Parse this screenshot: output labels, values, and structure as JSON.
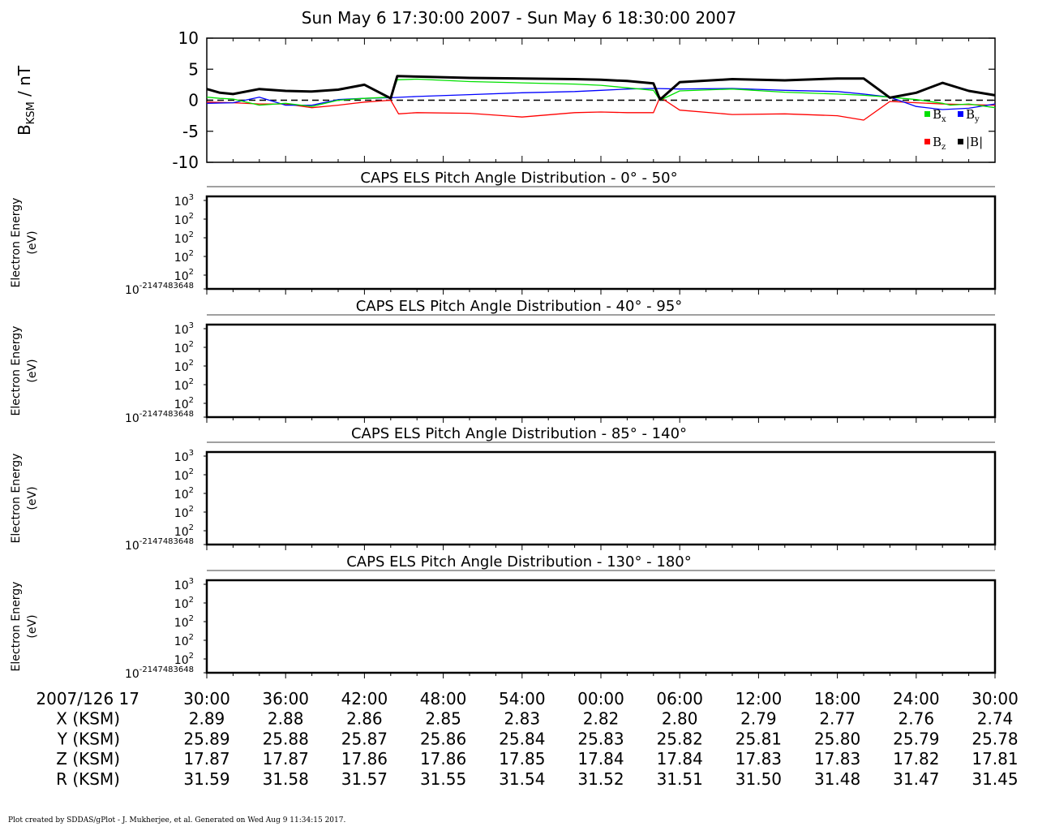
{
  "title": "Sun May 6 17:30:00 2007 - Sun May 6 18:30:00 2007",
  "footer": "Plot created by SDDAS/gPlot - J. Mukherjee, et al.  Generated on Wed Aug 9 11:34:15 2017.",
  "colors": {
    "Bx": "#00e000",
    "By": "#0000ff",
    "Bz": "#ff0000",
    "B": "#000000"
  },
  "chart_data": [
    {
      "type": "line",
      "ylabel": "B_KSM / nT",
      "ylim": [
        -10,
        10
      ],
      "yticks": [
        10,
        5,
        0,
        -5,
        -10
      ],
      "xlim_minutes": [
        0,
        60
      ],
      "zero_line": "dashed",
      "legend": [
        {
          "series": "Bx",
          "base": "B",
          "sub": "x"
        },
        {
          "series": "By",
          "base": "B",
          "sub": "y"
        },
        {
          "series": "Bz",
          "base": "B",
          "sub": "z"
        },
        {
          "series": "B",
          "label": "|B|"
        }
      ],
      "legend_placement": "right",
      "series": [
        {
          "name": "Bx",
          "x": [
            0,
            1,
            2,
            4,
            6,
            8,
            10,
            12,
            14,
            14.5,
            16,
            20,
            24,
            28,
            30,
            32,
            34,
            34.5,
            36,
            40,
            44,
            48,
            50,
            52,
            54,
            56,
            56.6,
            58,
            60
          ],
          "y": [
            0.5,
            0.3,
            0.2,
            -0.8,
            -0.5,
            -1.0,
            0.0,
            0.3,
            0.5,
            3.3,
            3.4,
            3.0,
            2.8,
            2.6,
            2.4,
            2.0,
            1.6,
            0.0,
            1.5,
            1.8,
            1.3,
            1.0,
            0.8,
            0.5,
            0.1,
            -0.5,
            -0.8,
            -0.6,
            -1.2
          ]
        },
        {
          "name": "By",
          "x": [
            0,
            2,
            4,
            6,
            8,
            10,
            12,
            14,
            16,
            20,
            24,
            28,
            30,
            32,
            34,
            36,
            40,
            44,
            48,
            50,
            52,
            54,
            56,
            58,
            60
          ],
          "y": [
            -0.5,
            -0.4,
            0.5,
            -0.8,
            -0.8,
            0.1,
            0.3,
            0.4,
            0.6,
            0.9,
            1.2,
            1.4,
            1.6,
            1.8,
            1.9,
            1.8,
            1.9,
            1.6,
            1.4,
            1.0,
            0.5,
            -1.0,
            -1.5,
            -1.3,
            -0.6
          ]
        },
        {
          "name": "Bz",
          "x": [
            0,
            2,
            4,
            6,
            8,
            10,
            12,
            14,
            14.6,
            16,
            20,
            24,
            28,
            30,
            32,
            34,
            34.5,
            36,
            40,
            44,
            48,
            50,
            52,
            54,
            56,
            58,
            60
          ],
          "y": [
            -0.3,
            -0.4,
            -0.6,
            -0.6,
            -1.2,
            -0.8,
            -0.3,
            0.0,
            -2.2,
            -2.0,
            -2.1,
            -2.7,
            -2.0,
            -1.9,
            -2.0,
            -2.0,
            0.5,
            -1.6,
            -2.3,
            -2.2,
            -2.5,
            -3.2,
            -0.2,
            -0.4,
            -0.6,
            -0.7,
            -0.8
          ]
        },
        {
          "name": "B",
          "x": [
            0,
            1,
            2,
            4,
            6,
            8,
            10,
            12,
            14,
            14.5,
            16,
            20,
            24,
            28,
            30,
            32,
            34,
            34.5,
            36,
            40,
            44,
            48,
            50,
            52,
            54,
            56,
            58,
            60
          ],
          "y": [
            1.8,
            1.2,
            1.0,
            1.8,
            1.5,
            1.4,
            1.7,
            2.5,
            0.3,
            3.9,
            3.8,
            3.6,
            3.5,
            3.4,
            3.3,
            3.1,
            2.7,
            0.1,
            2.9,
            3.4,
            3.2,
            3.5,
            3.5,
            0.4,
            1.2,
            2.8,
            1.5,
            0.8
          ]
        }
      ]
    },
    {
      "type": "heatmap",
      "title": "CAPS ELS Pitch Angle Distribution - 0° - 50°",
      "ylabel": [
        "Electron Energy",
        "(eV)"
      ],
      "yticks": [
        {
          "base": "10",
          "exp": "3"
        },
        {
          "base": "10",
          "exp": "2"
        },
        {
          "base": "10",
          "exp": "2"
        },
        {
          "base": "10",
          "exp": "2"
        },
        {
          "base": "10",
          "exp": "2"
        },
        {
          "base": "10",
          "exp": "-2147483648"
        }
      ],
      "values": []
    },
    {
      "type": "heatmap",
      "title": "CAPS ELS Pitch Angle Distribution - 40° - 95°",
      "ylabel": [
        "Electron Energy",
        "(eV)"
      ],
      "yticks": [
        {
          "base": "10",
          "exp": "3"
        },
        {
          "base": "10",
          "exp": "2"
        },
        {
          "base": "10",
          "exp": "2"
        },
        {
          "base": "10",
          "exp": "2"
        },
        {
          "base": "10",
          "exp": "2"
        },
        {
          "base": "10",
          "exp": "-2147483648"
        }
      ],
      "values": []
    },
    {
      "type": "heatmap",
      "title": "CAPS ELS Pitch Angle Distribution - 85° - 140°",
      "ylabel": [
        "Electron Energy",
        "(eV)"
      ],
      "yticks": [
        {
          "base": "10",
          "exp": "3"
        },
        {
          "base": "10",
          "exp": "2"
        },
        {
          "base": "10",
          "exp": "2"
        },
        {
          "base": "10",
          "exp": "2"
        },
        {
          "base": "10",
          "exp": "2"
        },
        {
          "base": "10",
          "exp": "-2147483648"
        }
      ],
      "values": []
    },
    {
      "type": "heatmap",
      "title": "CAPS ELS Pitch Angle Distribution - 130° - 180°",
      "ylabel": [
        "Electron Energy",
        "(eV)"
      ],
      "yticks": [
        {
          "base": "10",
          "exp": "3"
        },
        {
          "base": "10",
          "exp": "2"
        },
        {
          "base": "10",
          "exp": "2"
        },
        {
          "base": "10",
          "exp": "2"
        },
        {
          "base": "10",
          "exp": "2"
        },
        {
          "base": "10",
          "exp": "-2147483648"
        }
      ],
      "values": []
    },
    {
      "type": "table",
      "date_label": "2007/126 17",
      "time_labels": [
        "30:00",
        "36:00",
        "42:00",
        "48:00",
        "54:00",
        "00:00",
        "06:00",
        "12:00",
        "18:00",
        "24:00",
        "30:00"
      ],
      "rows": [
        {
          "label": "X (KSM)",
          "values": [
            "2.89",
            "2.88",
            "2.86",
            "2.85",
            "2.83",
            "2.82",
            "2.80",
            "2.79",
            "2.77",
            "2.76",
            "2.74"
          ]
        },
        {
          "label": "Y (KSM)",
          "values": [
            "25.89",
            "25.88",
            "25.87",
            "25.86",
            "25.84",
            "25.83",
            "25.82",
            "25.81",
            "25.80",
            "25.79",
            "25.78"
          ]
        },
        {
          "label": "Z (KSM)",
          "values": [
            "17.87",
            "17.87",
            "17.86",
            "17.86",
            "17.85",
            "17.84",
            "17.84",
            "17.83",
            "17.83",
            "17.82",
            "17.81"
          ]
        },
        {
          "label": "R (KSM)",
          "values": [
            "31.59",
            "31.58",
            "31.57",
            "31.55",
            "31.54",
            "31.52",
            "31.51",
            "31.50",
            "31.48",
            "31.47",
            "31.45"
          ]
        }
      ]
    }
  ]
}
